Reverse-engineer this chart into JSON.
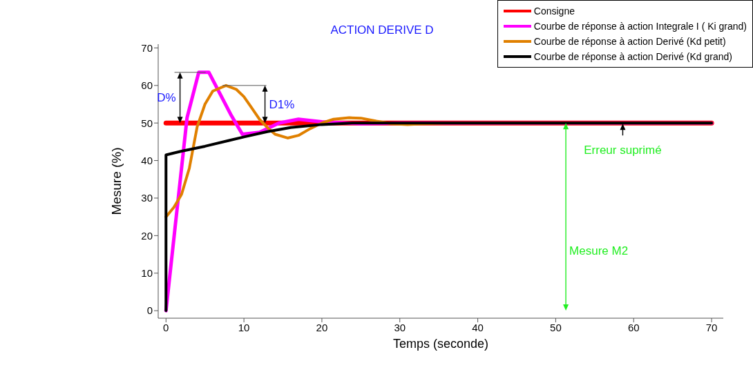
{
  "chart_data": {
    "type": "line",
    "title": "ACTION DERIVE D",
    "xlabel": "Temps (seconde)",
    "ylabel": "Mesure (%)",
    "xlim": [
      -1,
      71.5
    ],
    "ylim": [
      -2,
      71
    ],
    "xticks": [
      0,
      10,
      20,
      30,
      40,
      50,
      60,
      70
    ],
    "yticks": [
      0,
      10,
      20,
      30,
      40,
      50,
      60,
      70
    ],
    "legend": "top right",
    "line_style": "solid",
    "marker": "none",
    "series": [
      {
        "name": "Consigne",
        "color": "#ff0000",
        "x": [
          0,
          70
        ],
        "values": [
          50,
          50
        ]
      },
      {
        "name": "Courbe de réponse à action Integrale I ( Ki grand)",
        "color": "#ff00ff",
        "x": [
          0,
          2.7,
          4.2,
          5.5,
          8.3,
          9.8,
          12,
          14.5,
          17,
          20,
          25,
          30,
          70
        ],
        "values": [
          0,
          51.4,
          63.5,
          63.5,
          52.3,
          47,
          47.5,
          50,
          51,
          50.3,
          49.8,
          50,
          50
        ]
      },
      {
        "name": "Courbe de réponse à action Derivé (Kd petit)",
        "color": "#e08000",
        "x": [
          0,
          1,
          2,
          3,
          4,
          5,
          6,
          7.7,
          9,
          10,
          11,
          12,
          13,
          14,
          15.6,
          17,
          18.5,
          20,
          21.5,
          23.5,
          25,
          27,
          29,
          31,
          33,
          36,
          70
        ],
        "values": [
          25,
          27.5,
          31,
          38,
          49,
          55,
          58.5,
          60,
          59,
          57,
          54,
          51,
          48.8,
          47,
          46,
          46.7,
          48.5,
          50,
          51,
          51.4,
          51.3,
          50.5,
          49.8,
          49.6,
          49.8,
          50,
          50
        ]
      },
      {
        "name": "Courbe de réponse à action Derivé (Kd grand)",
        "color": "#000000",
        "x": [
          0,
          0,
          2,
          5,
          8,
          10,
          13,
          16,
          20,
          24,
          70
        ],
        "values": [
          0,
          41.5,
          42.5,
          43.8,
          45.3,
          46.3,
          47.7,
          48.8,
          49.6,
          50,
          50
        ]
      }
    ],
    "annotations": [
      {
        "text": "D%",
        "x": 4.2,
        "y": 63.5
      },
      {
        "text": "D1%",
        "x": 7.7,
        "y": 60
      },
      "Mesure M2",
      "Erreur suprimé"
    ]
  }
}
